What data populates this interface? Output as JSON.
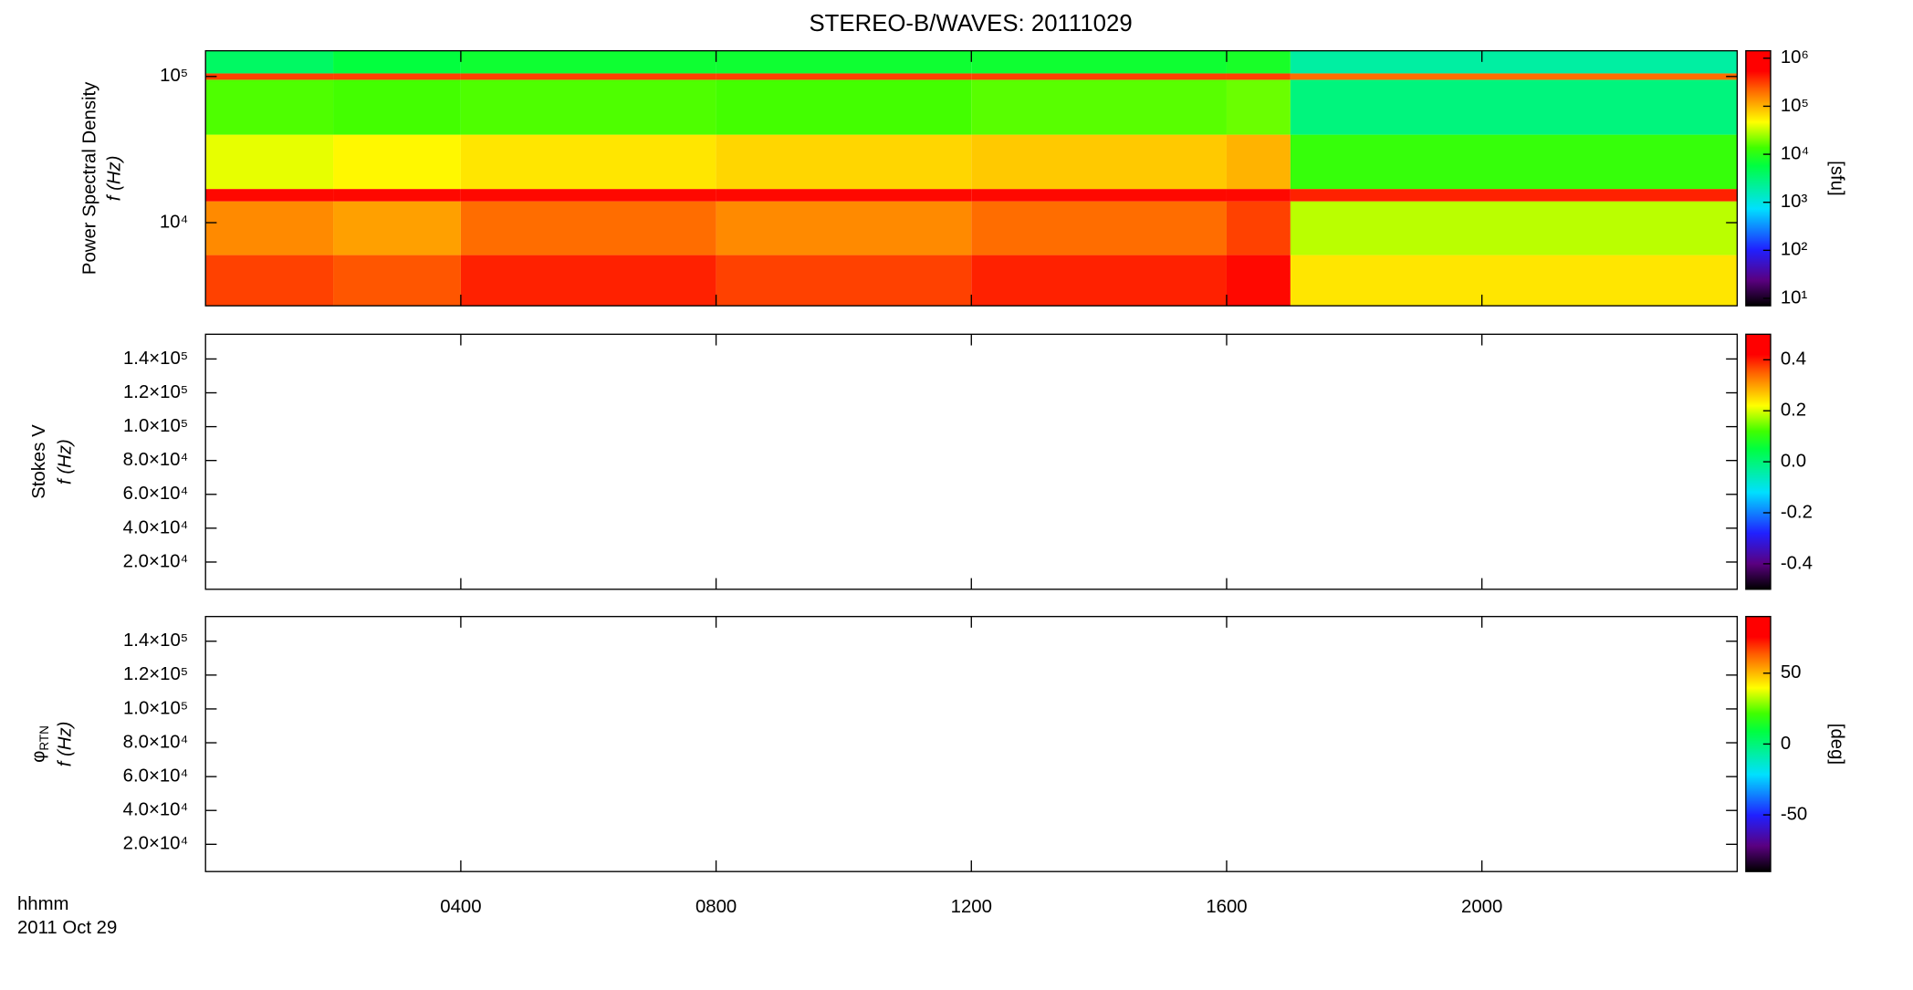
{
  "chart_data": [
    {
      "type": "spectrogram",
      "title": "STEREO-B/WAVES: 20111029",
      "ylabel": "Power Spectral Density",
      "ylabel2": "f (Hz)",
      "xlim": [
        0,
        24
      ],
      "ylim": [
        2700,
        150000
      ],
      "yscale": "log",
      "yticks": [
        {
          "value": 10000,
          "label": "10⁴"
        },
        {
          "value": 100000,
          "label": "10⁵"
        }
      ],
      "x_edges": [
        0,
        2,
        4,
        8,
        12,
        16,
        17,
        24
      ],
      "y_edges": [
        2700,
        6000,
        14000,
        17000,
        40000,
        95000,
        105000,
        150000
      ],
      "z": [
        [
          300000,
          250000,
          400000,
          300000,
          400000,
          500000,
          60000
        ],
        [
          150000,
          120000,
          200000,
          150000,
          200000,
          300000,
          30000
        ],
        [
          500000,
          500000,
          500000,
          500000,
          500000,
          500000,
          400000
        ],
        [
          40000,
          50000,
          60000,
          70000,
          80000,
          100000,
          12000
        ],
        [
          15000,
          14000,
          15000,
          14000,
          16000,
          18000,
          3000
        ],
        [
          300000,
          300000,
          300000,
          300000,
          300000,
          300000,
          200000
        ],
        [
          4000,
          6000,
          7000,
          7000,
          7000,
          8000,
          2000
        ]
      ],
      "cbar_scale": "log",
      "cbar_lim": [
        7,
        1430000
      ],
      "cbar_ticks": [
        {
          "value": 10,
          "label": "10¹"
        },
        {
          "value": 100,
          "label": "10²"
        },
        {
          "value": 1000,
          "label": "10³"
        },
        {
          "value": 10000,
          "label": "10⁴"
        },
        {
          "value": 100000,
          "label": "10⁵"
        },
        {
          "value": 1000000,
          "label": "10⁶"
        }
      ],
      "cbar_label": "[sfu]"
    },
    {
      "type": "spectrogram",
      "ylabel": "Stokes V",
      "ylabel2": "f (Hz)",
      "xlim": [
        0,
        24
      ],
      "ylim": [
        3900,
        154600
      ],
      "yscale": "linear",
      "yticks": [
        {
          "value": 20000,
          "label": "2.0×10⁴"
        },
        {
          "value": 40000,
          "label": "4.0×10⁴"
        },
        {
          "value": 60000,
          "label": "6.0×10⁴"
        },
        {
          "value": 80000,
          "label": "8.0×10⁴"
        },
        {
          "value": 100000,
          "label": "1.0×10⁵"
        },
        {
          "value": 120000,
          "label": "1.2×10⁵"
        },
        {
          "value": 140000,
          "label": "1.4×10⁵"
        }
      ],
      "cbar_scale": "linear",
      "cbar_lim": [
        -0.5,
        0.5
      ],
      "cbar_ticks": [
        -0.4,
        -0.2,
        {
          "value": 0,
          "label": "0.0"
        },
        0.2,
        0.4
      ]
    },
    {
      "type": "spectrogram",
      "ylabel": "φ",
      "ylabel_sub": "RTN",
      "ylabel2": "f (Hz)",
      "xlim": [
        0,
        24
      ],
      "ylim": [
        3900,
        154600
      ],
      "yscale": "linear",
      "yticks": [
        {
          "value": 20000,
          "label": "2.0×10⁴"
        },
        {
          "value": 40000,
          "label": "4.0×10⁴"
        },
        {
          "value": 60000,
          "label": "6.0×10⁴"
        },
        {
          "value": 80000,
          "label": "8.0×10⁴"
        },
        {
          "value": 100000,
          "label": "1.0×10⁵"
        },
        {
          "value": 120000,
          "label": "1.2×10⁵"
        },
        {
          "value": 140000,
          "label": "1.4×10⁵"
        }
      ],
      "cbar_scale": "linear",
      "cbar_lim": [
        -90,
        90
      ],
      "cbar_ticks": [
        -50,
        0,
        50
      ],
      "cbar_label": "[deg]",
      "xlabel": "hhmm",
      "date_label": "2011 Oct 29",
      "xticks": [
        {
          "value": 4,
          "label": "0400"
        },
        {
          "value": 8,
          "label": "0800"
        },
        {
          "value": 12,
          "label": "1200"
        },
        {
          "value": 16,
          "label": "1600"
        },
        {
          "value": 20,
          "label": "2000"
        }
      ]
    }
  ]
}
